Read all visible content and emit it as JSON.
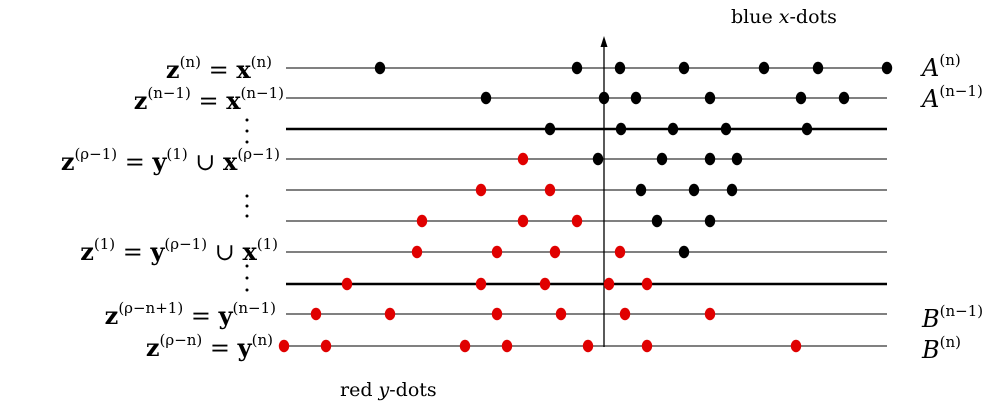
{
  "captions": {
    "top": "blue x-dots",
    "bottom": "red y-dots"
  },
  "colors": {
    "x_dot": "#000000",
    "y_dot": "#e00000",
    "line": "#000000"
  },
  "rows": [
    {
      "label": "z^(n) = x^(n)",
      "right": "A^(n)",
      "thick": false,
      "black": [
        380,
        577,
        620,
        684,
        764,
        818,
        887
      ],
      "red": []
    },
    {
      "label": "z^(n−1) = x^(n−1)",
      "right": "A^(n−1)",
      "thick": false,
      "black": [
        486,
        604,
        636,
        710,
        801,
        844
      ],
      "red": []
    },
    {
      "label": "",
      "right": "",
      "thick": true,
      "black": [
        550,
        621,
        673,
        726,
        807
      ],
      "red": []
    },
    {
      "label": "z^(ρ−1) = y^(1) ∪ x^(ρ−1)",
      "right": "",
      "thick": false,
      "black": [
        598,
        662,
        710,
        737
      ],
      "red": [
        523
      ]
    },
    {
      "label": "",
      "right": "",
      "thick": false,
      "black": [
        641,
        694,
        732
      ],
      "red": [
        481,
        550
      ]
    },
    {
      "label": "",
      "right": "",
      "thick": false,
      "black": [
        657,
        710
      ],
      "red": [
        422,
        523,
        577
      ]
    },
    {
      "label": "z^(1) = y^(ρ−1) ∪ x^(1)",
      "right": "",
      "thick": false,
      "black": [
        684
      ],
      "red": [
        417,
        497,
        555,
        620
      ]
    },
    {
      "label": "",
      "right": "",
      "thick": true,
      "black": [],
      "red": [
        347,
        481,
        545,
        609,
        647
      ]
    },
    {
      "label": "z^(ρ−n+1) = y^(n−1)",
      "right": "B^(n−1)",
      "thick": false,
      "black": [],
      "red": [
        316,
        390,
        497,
        561,
        625,
        710
      ]
    },
    {
      "label": "z^(ρ−n) = y^(n)",
      "right": "B^(n)",
      "thick": false,
      "black": [],
      "red": [
        284,
        326,
        465,
        507,
        588,
        647,
        796
      ]
    }
  ]
}
